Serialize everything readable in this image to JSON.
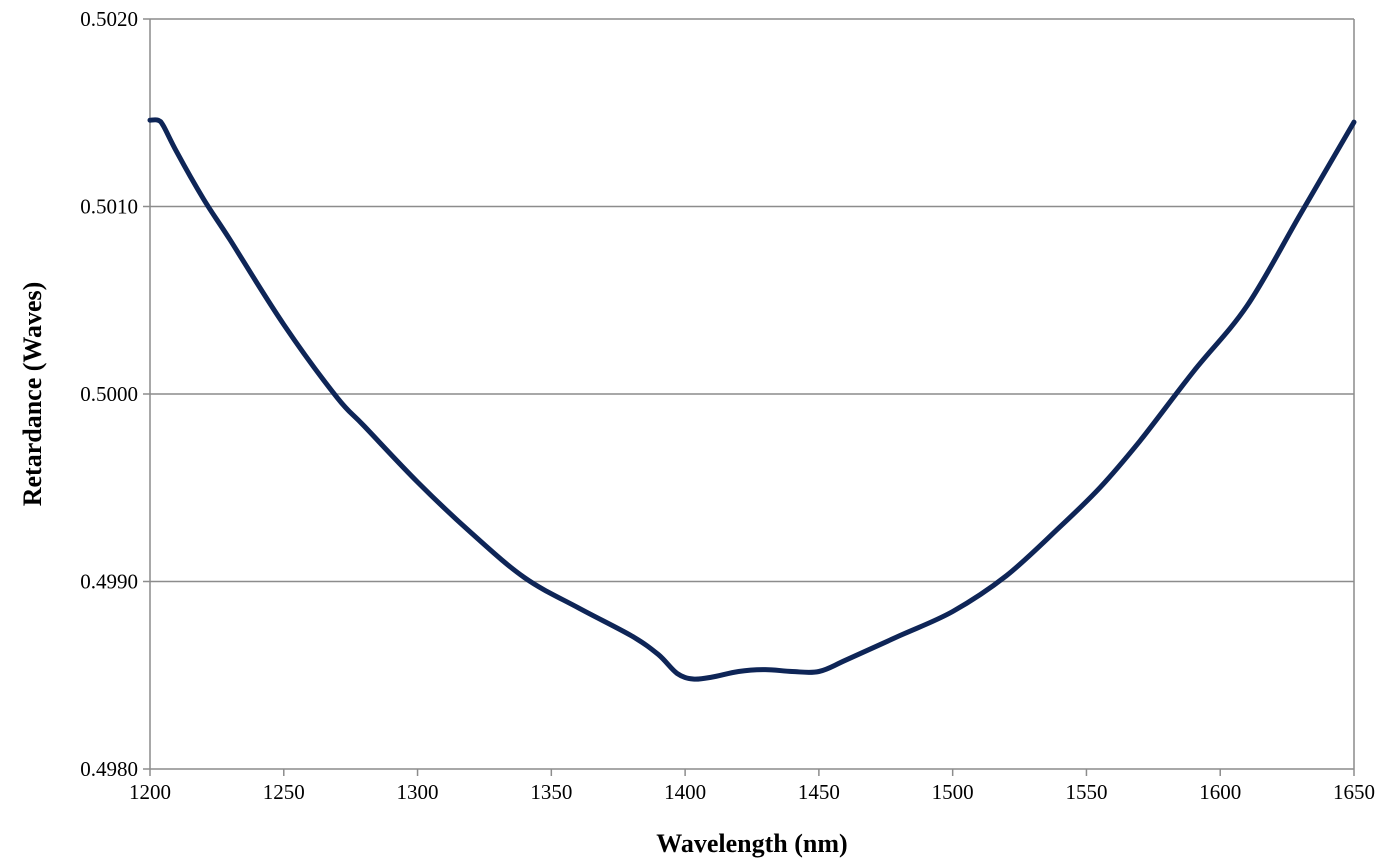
{
  "chart_data": {
    "type": "line",
    "title": "",
    "xlabel": "Wavelength (nm)",
    "ylabel": "Retardance (Waves)",
    "xlim": [
      1200,
      1650
    ],
    "ylim": [
      0.498,
      0.502
    ],
    "x_ticks": [
      1200,
      1250,
      1300,
      1350,
      1400,
      1450,
      1500,
      1550,
      1600,
      1650
    ],
    "x_tick_labels": [
      "1200",
      "1250",
      "1300",
      "1350",
      "1400",
      "1450",
      "1500",
      "1550",
      "1600",
      "1650"
    ],
    "y_ticks": [
      0.498,
      0.499,
      0.5,
      0.501,
      0.502
    ],
    "y_tick_labels": [
      "0.4980",
      "0.4990",
      "0.5000",
      "0.5010",
      "0.5020"
    ],
    "grid": "horizontal",
    "legend": "none",
    "series": [
      {
        "color": "#0e2557",
        "x": [
          1200,
          1203,
          1205,
          1210,
          1220,
          1230,
          1250,
          1270,
          1280,
          1300,
          1320,
          1340,
          1360,
          1380,
          1390,
          1397,
          1403,
          1410,
          1420,
          1430,
          1440,
          1450,
          1460,
          1480,
          1500,
          1520,
          1540,
          1555,
          1570,
          1590,
          1610,
          1630,
          1650
        ],
        "y": [
          0.50146,
          0.50146,
          0.50143,
          0.50129,
          0.50104,
          0.50082,
          0.50037,
          0.49998,
          0.49983,
          0.49953,
          0.49926,
          0.49902,
          0.49886,
          0.49871,
          0.49861,
          0.49851,
          0.49848,
          0.49849,
          0.49852,
          0.49853,
          0.49852,
          0.49852,
          0.49858,
          0.49871,
          0.49884,
          0.49903,
          0.49929,
          0.4995,
          0.49975,
          0.50012,
          0.50047,
          0.50096,
          0.50145
        ]
      }
    ]
  }
}
